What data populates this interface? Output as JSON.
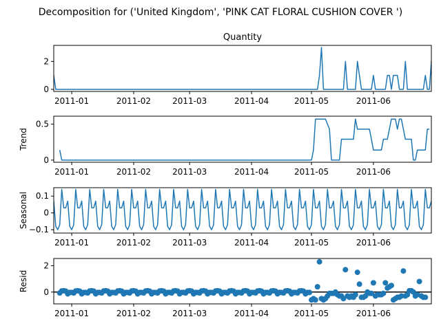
{
  "figure": {
    "suptitle": "Decomposition for ('United Kingdom', 'PINK CAT FLORAL CUSHION COVER ')"
  },
  "colors": {
    "line": "#1f77b4",
    "axis": "#000000",
    "zero_line": "#000000"
  },
  "chart_data": [
    {
      "type": "line",
      "panel": "observed",
      "title": "Quantity",
      "ylabel": "",
      "xlim": [
        "2010-12-23",
        "2011-06-30"
      ],
      "ylim": [
        -0.15,
        3.15
      ],
      "yticks": [
        0,
        2
      ],
      "x_ticks": [
        "2011-01",
        "2011-02",
        "2011-03",
        "2011-04",
        "2011-05",
        "2011-06"
      ],
      "points": [
        [
          "2010-12-23",
          1
        ],
        [
          "2010-12-24",
          0
        ],
        [
          "2011-05-04",
          0
        ],
        [
          "2011-05-05",
          1
        ],
        [
          "2011-05-06",
          3
        ],
        [
          "2011-05-07",
          0
        ],
        [
          "2011-05-17",
          0
        ],
        [
          "2011-05-18",
          2
        ],
        [
          "2011-05-19",
          0
        ],
        [
          "2011-05-23",
          0
        ],
        [
          "2011-05-24",
          2
        ],
        [
          "2011-05-26",
          0
        ],
        [
          "2011-05-31",
          0
        ],
        [
          "2011-06-01",
          1
        ],
        [
          "2011-06-02",
          0
        ],
        [
          "2011-06-07",
          0
        ],
        [
          "2011-06-08",
          1
        ],
        [
          "2011-06-09",
          1
        ],
        [
          "2011-06-10",
          0
        ],
        [
          "2011-06-11",
          1
        ],
        [
          "2011-06-13",
          1
        ],
        [
          "2011-06-14",
          0
        ],
        [
          "2011-06-16",
          0
        ],
        [
          "2011-06-17",
          2
        ],
        [
          "2011-06-18",
          0
        ],
        [
          "2011-06-26",
          0
        ],
        [
          "2011-06-27",
          1
        ],
        [
          "2011-06-28",
          0
        ],
        [
          "2011-06-29",
          0
        ],
        [
          "2011-06-30",
          2
        ],
        [
          "2011-07-01",
          1
        ]
      ]
    },
    {
      "type": "line",
      "panel": "trend",
      "title": "",
      "ylabel": "Trend",
      "xlim": [
        "2010-12-23",
        "2011-06-30"
      ],
      "ylim": [
        -0.03,
        0.61
      ],
      "yticks": [
        0.0,
        0.5
      ],
      "x_ticks": [
        "2011-01",
        "2011-02",
        "2011-03",
        "2011-04",
        "2011-05",
        "2011-06"
      ],
      "points": [
        [
          "2010-12-26",
          0.14
        ],
        [
          "2010-12-27",
          0
        ],
        [
          "2011-05-01",
          0
        ],
        [
          "2011-05-02",
          0.14
        ],
        [
          "2011-05-03",
          0.57
        ],
        [
          "2011-05-08",
          0.57
        ],
        [
          "2011-05-10",
          0.43
        ],
        [
          "2011-05-11",
          0
        ],
        [
          "2011-05-15",
          0
        ],
        [
          "2011-05-16",
          0.29
        ],
        [
          "2011-05-22",
          0.29
        ],
        [
          "2011-05-23",
          0.57
        ],
        [
          "2011-05-24",
          0.43
        ],
        [
          "2011-05-30",
          0.43
        ],
        [
          "2011-05-31",
          0.29
        ],
        [
          "2011-06-01",
          0.14
        ],
        [
          "2011-06-05",
          0.14
        ],
        [
          "2011-06-06",
          0.29
        ],
        [
          "2011-06-08",
          0.29
        ],
        [
          "2011-06-10",
          0.57
        ],
        [
          "2011-06-12",
          0.57
        ],
        [
          "2011-06-13",
          0.43
        ],
        [
          "2011-06-14",
          0.57
        ],
        [
          "2011-06-15",
          0.57
        ],
        [
          "2011-06-16",
          0.43
        ],
        [
          "2011-06-17",
          0.29
        ],
        [
          "2011-06-20",
          0.29
        ],
        [
          "2011-06-21",
          0
        ],
        [
          "2011-06-22",
          0
        ],
        [
          "2011-06-23",
          0.14
        ],
        [
          "2011-06-27",
          0.14
        ],
        [
          "2011-06-28",
          0.43
        ],
        [
          "2011-06-29",
          0.43
        ]
      ]
    },
    {
      "type": "line",
      "panel": "seasonal",
      "title": "",
      "ylabel": "Seasonal",
      "xlim": [
        "2010-12-23",
        "2011-06-30"
      ],
      "ylim": [
        -0.12,
        0.15
      ],
      "yticks": [
        -0.1,
        0.0,
        0.1
      ],
      "x_ticks": [
        "2011-01",
        "2011-02",
        "2011-03",
        "2011-04",
        "2011-05",
        "2011-06"
      ],
      "start": "2010-12-23",
      "end": "2011-07-01",
      "weekly_pattern": [
        0.07,
        -0.08,
        -0.1,
        -0.07,
        0.14,
        0.03,
        0.03
      ]
    },
    {
      "type": "scatter",
      "panel": "resid",
      "title": "",
      "ylabel": "Resid",
      "xlim": [
        "2010-12-23",
        "2011-06-30"
      ],
      "ylim": [
        -0.9,
        2.55
      ],
      "yticks": [
        0,
        2
      ],
      "zero_line": true,
      "x_ticks": [
        "2011-01",
        "2011-02",
        "2011-03",
        "2011-04",
        "2011-05",
        "2011-06"
      ],
      "baseline": {
        "start": "2010-12-26",
        "end": "2011-04-30",
        "weekly_pattern": [
          -0.07,
          0.08,
          0.1,
          0.07,
          -0.14,
          -0.03,
          -0.03
        ]
      },
      "points": [
        [
          "2011-05-01",
          -0.6
        ],
        [
          "2011-05-02",
          -0.5
        ],
        [
          "2011-05-03",
          -0.6
        ],
        [
          "2011-05-04",
          0.4
        ],
        [
          "2011-05-05",
          2.3
        ],
        [
          "2011-05-06",
          -0.5
        ],
        [
          "2011-05-07",
          -0.6
        ],
        [
          "2011-05-08",
          -0.5
        ],
        [
          "2011-05-09",
          -0.3
        ],
        [
          "2011-05-10",
          -0.1
        ],
        [
          "2011-05-11",
          -0.1
        ],
        [
          "2011-05-12",
          -0.1
        ],
        [
          "2011-05-13",
          0.0
        ],
        [
          "2011-05-14",
          -0.2
        ],
        [
          "2011-05-15",
          -0.3
        ],
        [
          "2011-05-16",
          -0.3
        ],
        [
          "2011-05-17",
          -0.5
        ],
        [
          "2011-05-18",
          1.7
        ],
        [
          "2011-05-19",
          -0.3
        ],
        [
          "2011-05-20",
          -0.4
        ],
        [
          "2011-05-21",
          -0.3
        ],
        [
          "2011-05-22",
          -0.4
        ],
        [
          "2011-05-23",
          -0.2
        ],
        [
          "2011-05-24",
          1.5
        ],
        [
          "2011-05-25",
          0.6
        ],
        [
          "2011-05-26",
          -0.4
        ],
        [
          "2011-05-27",
          -0.4
        ],
        [
          "2011-05-28",
          -0.3
        ],
        [
          "2011-05-29",
          0.0
        ],
        [
          "2011-05-30",
          -0.1
        ],
        [
          "2011-05-31",
          -0.1
        ],
        [
          "2011-06-01",
          0.7
        ],
        [
          "2011-06-02",
          -0.3
        ],
        [
          "2011-06-03",
          -0.2
        ],
        [
          "2011-06-04",
          -0.2
        ],
        [
          "2011-06-05",
          -0.2
        ],
        [
          "2011-06-06",
          -0.1
        ],
        [
          "2011-06-07",
          0.7
        ],
        [
          "2011-06-08",
          0.3
        ],
        [
          "2011-06-09",
          0.4
        ],
        [
          "2011-06-10",
          0.5
        ],
        [
          "2011-06-11",
          -0.6
        ],
        [
          "2011-06-12",
          -0.5
        ],
        [
          "2011-06-13",
          -0.4
        ],
        [
          "2011-06-14",
          -0.4
        ],
        [
          "2011-06-15",
          -0.3
        ],
        [
          "2011-06-16",
          1.6
        ],
        [
          "2011-06-17",
          -0.3
        ],
        [
          "2011-06-18",
          -0.2
        ],
        [
          "2011-06-19",
          0.1
        ],
        [
          "2011-06-20",
          0.1
        ],
        [
          "2011-06-21",
          0.0
        ],
        [
          "2011-06-22",
          -0.3
        ],
        [
          "2011-06-23",
          -0.2
        ],
        [
          "2011-06-24",
          0.8
        ],
        [
          "2011-06-25",
          -0.3
        ],
        [
          "2011-06-26",
          -0.4
        ],
        [
          "2011-06-27",
          -0.4
        ]
      ]
    }
  ]
}
